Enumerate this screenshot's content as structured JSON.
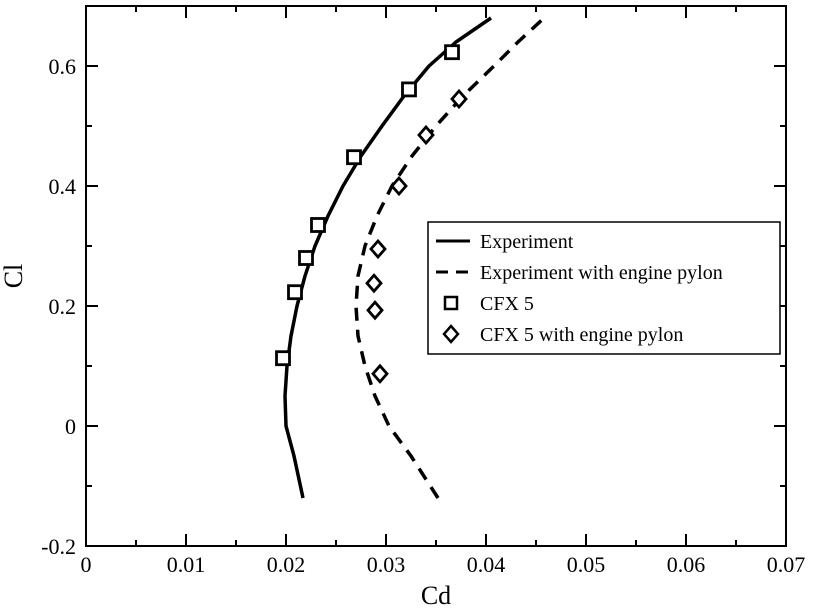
{
  "chart_data": {
    "type": "scatter",
    "xlabel": "Cd",
    "ylabel": "Cl",
    "xlim": [
      0,
      0.07
    ],
    "ylim": [
      -0.2,
      0.7
    ],
    "x_ticks": [
      "0",
      "0.01",
      "0.02",
      "0.03",
      "0.04",
      "0.05",
      "0.06",
      "0.07"
    ],
    "y_ticks": [
      "-0.2",
      "0",
      "0.2",
      "0.4",
      "0.6"
    ],
    "grid": false,
    "legend_position": "right-center",
    "series": [
      {
        "name": "Experiment",
        "kind": "line",
        "style": "solid",
        "color": "#000000",
        "points": [
          [
            0.0217,
            -0.12
          ],
          [
            0.0208,
            -0.05
          ],
          [
            0.02,
            0.0
          ],
          [
            0.0199,
            0.05
          ],
          [
            0.0201,
            0.1
          ],
          [
            0.0205,
            0.15
          ],
          [
            0.0211,
            0.2
          ],
          [
            0.0219,
            0.25
          ],
          [
            0.0229,
            0.3
          ],
          [
            0.0242,
            0.35
          ],
          [
            0.0257,
            0.4
          ],
          [
            0.0275,
            0.45
          ],
          [
            0.0296,
            0.5
          ],
          [
            0.0318,
            0.55
          ],
          [
            0.0343,
            0.6
          ],
          [
            0.037,
            0.64
          ],
          [
            0.0405,
            0.68
          ]
        ]
      },
      {
        "name": "Experiment with engine pylon",
        "kind": "line",
        "style": "dashed",
        "color": "#000000",
        "points": [
          [
            0.0352,
            -0.12
          ],
          [
            0.0325,
            -0.05
          ],
          [
            0.0303,
            0.0
          ],
          [
            0.0289,
            0.05
          ],
          [
            0.0279,
            0.1
          ],
          [
            0.0272,
            0.15
          ],
          [
            0.027,
            0.2
          ],
          [
            0.0272,
            0.25
          ],
          [
            0.0279,
            0.3
          ],
          [
            0.0291,
            0.35
          ],
          [
            0.0306,
            0.4
          ],
          [
            0.0326,
            0.45
          ],
          [
            0.035,
            0.5
          ],
          [
            0.0377,
            0.55
          ],
          [
            0.0408,
            0.6
          ],
          [
            0.0432,
            0.64
          ],
          [
            0.0458,
            0.68
          ]
        ]
      },
      {
        "name": "CFX 5",
        "kind": "scatter",
        "marker": "square",
        "color": "#000000",
        "points": [
          [
            0.0197,
            0.113
          ],
          [
            0.0209,
            0.223
          ],
          [
            0.022,
            0.28
          ],
          [
            0.0232,
            0.335
          ],
          [
            0.0268,
            0.448
          ],
          [
            0.0323,
            0.561
          ],
          [
            0.0366,
            0.623
          ]
        ]
      },
      {
        "name": "CFX 5 with engine pylon",
        "kind": "scatter",
        "marker": "diamond",
        "color": "#000000",
        "points": [
          [
            0.0294,
            0.087
          ],
          [
            0.0289,
            0.193
          ],
          [
            0.0288,
            0.238
          ],
          [
            0.0292,
            0.295
          ],
          [
            0.0313,
            0.4
          ],
          [
            0.034,
            0.485
          ],
          [
            0.0373,
            0.545
          ]
        ]
      }
    ]
  }
}
